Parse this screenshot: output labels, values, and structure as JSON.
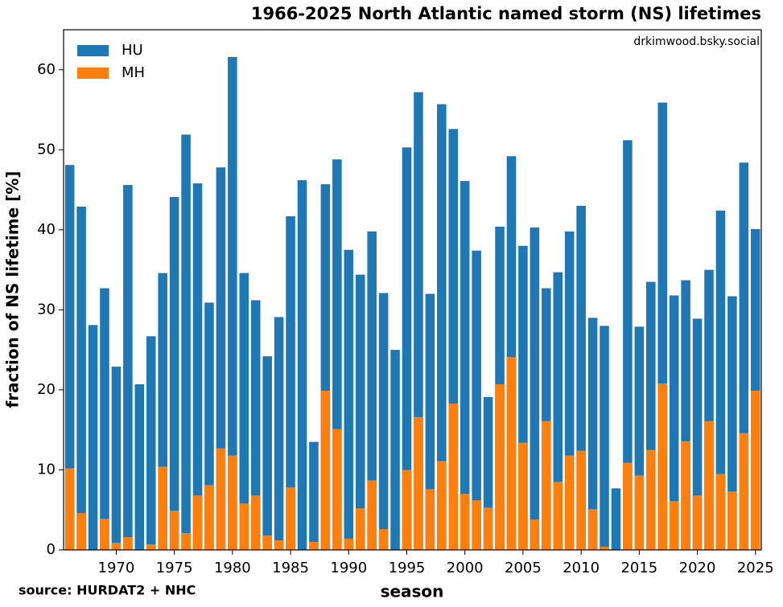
{
  "chart_data": {
    "type": "bar",
    "title": "1966-2025 North Atlantic named storm (NS) lifetimes",
    "annotation": "drkimwood.bsky.social",
    "source": "source: HURDAT2 + NHC",
    "xlabel": "season",
    "ylabel": "fraction of NS lifetime [%]",
    "x": [
      1966,
      1967,
      1968,
      1969,
      1970,
      1971,
      1972,
      1973,
      1974,
      1975,
      1976,
      1977,
      1978,
      1979,
      1980,
      1981,
      1982,
      1983,
      1984,
      1985,
      1986,
      1987,
      1988,
      1989,
      1990,
      1991,
      1992,
      1993,
      1994,
      1995,
      1996,
      1997,
      1998,
      1999,
      2000,
      2001,
      2002,
      2003,
      2004,
      2005,
      2006,
      2007,
      2008,
      2009,
      2010,
      2011,
      2012,
      2013,
      2014,
      2015,
      2016,
      2017,
      2018,
      2019,
      2020,
      2021,
      2022,
      2023,
      2024,
      2025
    ],
    "series": [
      {
        "name": "HU",
        "color": "#1f77b4",
        "values": [
          48.1,
          42.9,
          28.1,
          32.7,
          22.9,
          45.6,
          20.7,
          26.7,
          34.6,
          44.1,
          51.9,
          45.8,
          30.9,
          47.8,
          61.6,
          34.6,
          31.2,
          24.2,
          29.1,
          41.7,
          46.2,
          13.5,
          45.7,
          48.8,
          37.5,
          34.4,
          39.8,
          32.1,
          25.0,
          50.3,
          57.2,
          32.0,
          55.7,
          52.6,
          46.1,
          37.4,
          19.1,
          40.4,
          49.2,
          38.0,
          40.3,
          32.7,
          34.7,
          39.8,
          43.0,
          29.0,
          28.0,
          7.7,
          51.2,
          27.9,
          33.5,
          55.9,
          31.8,
          33.7,
          28.9,
          35.0,
          42.4,
          31.7,
          48.4,
          40.1
        ]
      },
      {
        "name": "MH",
        "color": "#ff7f0e",
        "values": [
          10.2,
          4.6,
          0,
          3.9,
          0.9,
          1.6,
          0,
          0.7,
          10.4,
          4.9,
          2.1,
          6.8,
          8.1,
          12.7,
          11.8,
          5.8,
          6.8,
          1.8,
          1.2,
          7.8,
          0,
          1.0,
          19.9,
          15.1,
          1.4,
          5.2,
          8.7,
          2.6,
          0,
          10.0,
          16.6,
          7.6,
          11.1,
          18.3,
          7.0,
          6.2,
          5.3,
          20.7,
          24.1,
          13.4,
          3.8,
          16.1,
          8.5,
          11.8,
          12.4,
          5.1,
          0.4,
          0,
          10.9,
          9.3,
          12.5,
          20.8,
          6.1,
          13.6,
          6.8,
          16.1,
          9.5,
          7.3,
          14.6,
          19.9
        ]
      }
    ],
    "xlim": [
      1965.47,
      2025.5
    ],
    "xticks": [
      1970,
      1975,
      1980,
      1985,
      1990,
      1995,
      2000,
      2005,
      2010,
      2015,
      2020,
      2025
    ],
    "ylim": [
      0,
      65
    ],
    "yticks": [
      0,
      10,
      20,
      30,
      40,
      50,
      60
    ],
    "legend": "upper left",
    "grid": false
  }
}
